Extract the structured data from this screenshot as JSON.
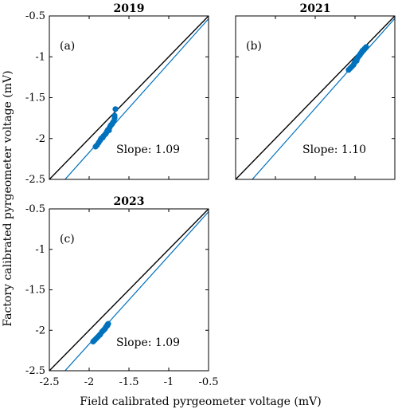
{
  "figure": {
    "ylabel": "Factory calibrated pyrgeometer voltage (mV)",
    "xlabel": "Field calibrated pyrgeometer voltage (mV)"
  },
  "chart_data": [
    {
      "type": "scatter",
      "title": "2019",
      "panel_label": "(a)",
      "annotation": "Slope: 1.09",
      "xlim": [
        -2.5,
        -0.5
      ],
      "ylim": [
        -2.5,
        -0.5
      ],
      "x_ticks": [
        "-2.5",
        "-2",
        "-1.5",
        "-1",
        "-0.5"
      ],
      "y_ticks": [
        "-2.5",
        "-2",
        "-1.5",
        "-1",
        "-0.5"
      ],
      "show_x_ticklabels": false,
      "show_y_ticklabels": true,
      "grid": false,
      "color": "#0072BD",
      "reference_line": {
        "slope": 1,
        "intercept": 0,
        "color": "#000000"
      },
      "fit_line": {
        "slope": 1.09,
        "intercept": 0.01,
        "x_range": [
          -2.3,
          -0.5
        ],
        "color": "#0072BD"
      },
      "x": [
        -1.92,
        -1.9,
        -1.88,
        -1.86,
        -1.85,
        -1.83,
        -1.82,
        -1.8,
        -1.79,
        -1.78,
        -1.77,
        -1.76,
        -1.75,
        -1.74,
        -1.73,
        -1.72,
        -1.71,
        -1.7,
        -1.69,
        -1.68,
        -1.68,
        -1.67
      ],
      "y": [
        -2.1,
        -2.08,
        -2.05,
        -2.02,
        -2.0,
        -1.99,
        -1.97,
        -1.95,
        -1.94,
        -1.92,
        -1.9,
        -1.89,
        -1.9,
        -1.86,
        -1.84,
        -1.83,
        -1.82,
        -1.8,
        -1.79,
        -1.75,
        -1.72,
        -1.64
      ]
    },
    {
      "type": "scatter",
      "title": "2021",
      "panel_label": "(b)",
      "annotation": "Slope: 1.10",
      "xlim": [
        -2.5,
        -0.5
      ],
      "ylim": [
        -2.5,
        -0.5
      ],
      "x_ticks": [
        "-2.5",
        "-2",
        "-1.5",
        "-1",
        "-0.5"
      ],
      "y_ticks": [
        "-2.5",
        "-2",
        "-1.5",
        "-1",
        "-0.5"
      ],
      "show_x_ticklabels": false,
      "show_y_ticklabels": false,
      "grid": false,
      "color": "#0072BD",
      "reference_line": {
        "slope": 1,
        "intercept": 0,
        "color": "#000000"
      },
      "fit_line": {
        "slope": 1.1,
        "intercept": 0.02,
        "x_range": [
          -2.3,
          -0.5
        ],
        "color": "#0072BD"
      },
      "x": [
        -1.08,
        -1.06,
        -1.04,
        -1.02,
        -1.01,
        -1.0,
        -0.99,
        -0.98,
        -0.97,
        -0.96,
        -0.95,
        -0.94,
        -0.93,
        -0.92,
        -0.91,
        -0.9,
        -0.88,
        -0.86
      ],
      "y": [
        -1.16,
        -1.14,
        -1.12,
        -1.1,
        -1.08,
        -1.06,
        -1.04,
        -1.05,
        -1.02,
        -1.0,
        -0.99,
        -0.98,
        -0.96,
        -0.95,
        -0.93,
        -0.92,
        -0.9,
        -0.88
      ]
    },
    {
      "type": "scatter",
      "title": "2023",
      "panel_label": "(c)",
      "annotation": "Slope: 1.09",
      "xlim": [
        -2.5,
        -0.5
      ],
      "ylim": [
        -2.5,
        -0.5
      ],
      "x_ticks": [
        "-2.5",
        "-2",
        "-1.5",
        "-1",
        "-0.5"
      ],
      "y_ticks": [
        "-2.5",
        "-2",
        "-1.5",
        "-1",
        "-0.5"
      ],
      "show_x_ticklabels": true,
      "show_y_ticklabels": true,
      "grid": false,
      "color": "#0072BD",
      "reference_line": {
        "slope": 1,
        "intercept": 0,
        "color": "#000000"
      },
      "fit_line": {
        "slope": 1.09,
        "intercept": 0.01,
        "x_range": [
          -2.3,
          -0.5
        ],
        "color": "#0072BD"
      },
      "x": [
        -1.95,
        -1.93,
        -1.91,
        -1.89,
        -1.87,
        -1.86,
        -1.84,
        -1.83,
        -1.82,
        -1.81,
        -1.8,
        -1.79,
        -1.78,
        -1.77,
        -1.77,
        -1.76
      ],
      "y": [
        -2.14,
        -2.12,
        -2.1,
        -2.08,
        -2.06,
        -2.05,
        -2.02,
        -2.01,
        -2.0,
        -1.99,
        -1.98,
        -1.96,
        -1.95,
        -1.94,
        -1.93,
        -1.92
      ]
    }
  ]
}
